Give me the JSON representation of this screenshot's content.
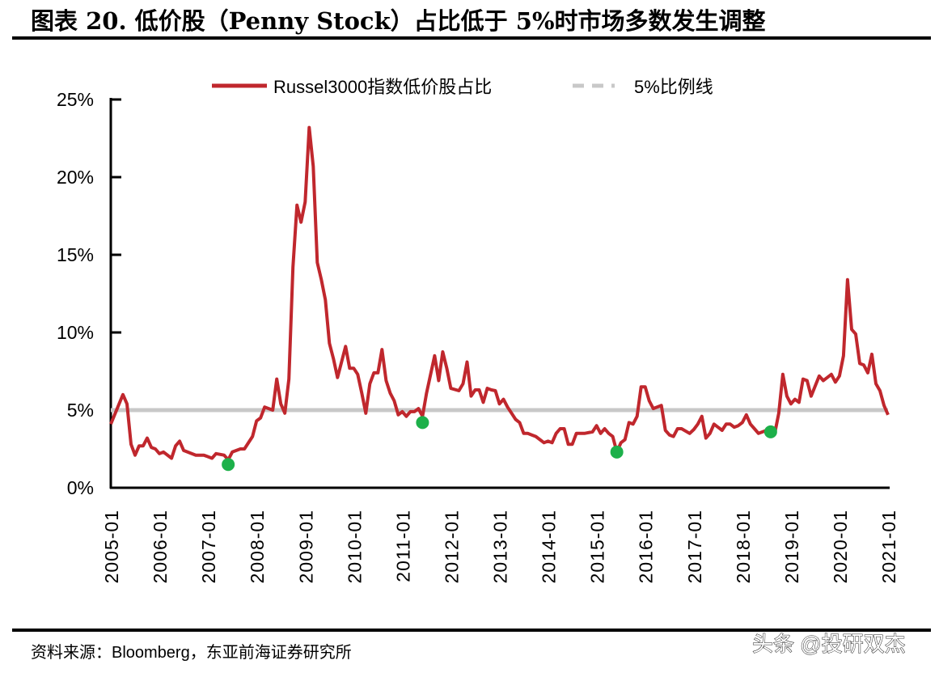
{
  "title": "图表 20. 低价股（Penny Stock）占比低于 5%时市场多数发生调整",
  "source": "资料来源：Bloomberg，东亚前海证券研究所",
  "watermark": "头条 @投研双杰",
  "colors": {
    "series": "#C0272D",
    "reference": "#C8C8C8",
    "marker": "#1DB04A"
  },
  "chart_data": {
    "type": "line",
    "title": "图表 20. 低价股（Penny Stock）占比低于 5%时市场多数发生调整",
    "xlabel": "",
    "ylabel": "",
    "x_unit": "months since 2005-01",
    "xlim": [
      0,
      192
    ],
    "ylim": [
      0,
      25
    ],
    "y_ticks": [
      0,
      5,
      10,
      15,
      20,
      25
    ],
    "y_tick_labels": [
      "0%",
      "5%",
      "10%",
      "15%",
      "20%",
      "25%"
    ],
    "x_tick_labels": [
      "2005-01",
      "2006-01",
      "2007-01",
      "2008-01",
      "2009-01",
      "2010-01",
      "2011-01",
      "2012-01",
      "2013-01",
      "2014-01",
      "2015-01",
      "2016-01",
      "2017-01",
      "2018-01",
      "2019-01",
      "2020-01",
      "2021-01"
    ],
    "grid": false,
    "legend_placement": "top-center",
    "legend": [
      "Russel3000指数低价股占比",
      "5%比例线"
    ],
    "series": [
      {
        "name": "Russel3000指数低价股占比",
        "x": [
          0,
          3,
          4,
          5,
          6,
          7,
          8,
          9,
          10,
          11,
          12,
          13,
          15,
          16,
          17,
          18,
          21,
          23,
          25,
          26,
          28,
          29,
          30,
          32,
          33,
          35,
          36,
          37,
          38,
          40,
          41,
          42,
          43,
          44,
          45,
          46,
          47,
          48,
          49,
          50,
          51,
          52,
          53,
          54,
          55,
          56,
          58,
          59,
          60,
          61,
          62,
          63,
          64,
          65,
          66,
          67,
          68,
          69,
          70,
          71,
          72,
          73,
          74,
          75,
          76,
          77,
          78,
          80,
          81,
          82,
          83,
          84,
          86,
          87,
          88,
          89,
          90,
          91,
          92,
          93,
          94,
          95,
          96,
          97,
          98,
          99,
          100,
          101,
          102,
          103,
          104,
          105,
          106,
          107,
          108,
          109,
          110,
          111,
          112,
          113,
          114,
          115,
          117,
          119,
          120,
          121,
          122,
          123,
          124,
          125,
          126,
          127,
          128,
          129,
          130,
          131,
          132,
          133,
          134,
          136,
          137,
          138,
          139,
          140,
          141,
          143,
          144,
          145,
          146,
          147,
          148,
          149,
          151,
          152,
          153,
          154,
          155,
          156,
          157,
          158,
          159,
          160,
          161,
          162,
          164,
          165,
          166,
          167,
          168,
          169,
          170,
          171,
          172,
          173,
          175,
          176,
          177,
          178,
          179,
          180,
          181,
          182,
          183,
          184,
          185,
          186,
          187,
          188,
          189,
          190,
          191,
          192
        ],
        "y": [
          4.1,
          6.0,
          5.4,
          2.8,
          2.1,
          2.7,
          2.7,
          3.2,
          2.6,
          2.5,
          2.2,
          2.3,
          1.9,
          2.7,
          3.0,
          2.4,
          2.1,
          2.1,
          1.9,
          2.2,
          2.1,
          1.8,
          2.3,
          2.5,
          2.5,
          3.3,
          4.3,
          4.5,
          5.2,
          5.0,
          7.0,
          5.4,
          4.8,
          7.0,
          14.2,
          18.2,
          17.1,
          18.4,
          23.2,
          20.7,
          14.5,
          13.4,
          12.1,
          9.3,
          8.3,
          7.1,
          9.1,
          7.7,
          7.7,
          7.3,
          6.1,
          4.8,
          6.7,
          7.4,
          7.4,
          8.9,
          6.9,
          6.1,
          5.6,
          4.7,
          4.9,
          4.6,
          4.9,
          4.9,
          5.1,
          4.6,
          6.1,
          8.5,
          6.9,
          8.75,
          7.7,
          6.4,
          6.25,
          6.7,
          8.1,
          5.9,
          6.3,
          6.3,
          5.5,
          6.4,
          6.3,
          6.25,
          5.4,
          5.7,
          5.2,
          4.8,
          4.4,
          4.2,
          3.5,
          3.5,
          3.4,
          3.3,
          3.1,
          2.9,
          3.0,
          2.9,
          3.5,
          3.8,
          3.8,
          2.8,
          2.8,
          3.5,
          3.5,
          3.6,
          4.0,
          3.5,
          3.8,
          3.5,
          3.3,
          2.3,
          2.9,
          3.1,
          4.2,
          4.1,
          4.6,
          6.5,
          6.5,
          5.6,
          5.1,
          5.3,
          3.7,
          3.4,
          3.3,
          3.8,
          3.8,
          3.5,
          3.75,
          4.1,
          4.6,
          3.2,
          3.5,
          4.1,
          3.7,
          4.1,
          4.1,
          3.9,
          4.0,
          4.2,
          4.7,
          4.1,
          3.8,
          3.5,
          3.6,
          3.7,
          3.5,
          4.8,
          7.3,
          5.9,
          5.4,
          5.7,
          5.5,
          7.0,
          6.9,
          5.9,
          7.2,
          6.9,
          7.1,
          7.3,
          6.8,
          7.2,
          8.5,
          13.4,
          10.2,
          9.9,
          8.0,
          7.9,
          7.4,
          8.6,
          6.7,
          6.25,
          5.3,
          4.7
        ]
      },
      {
        "name": "5%比例线",
        "x": [
          0,
          192
        ],
        "y": [
          5,
          5
        ]
      }
    ],
    "markers": [
      {
        "x": 29,
        "y": 1.5
      },
      {
        "x": 77,
        "y": 4.2
      },
      {
        "x": 125,
        "y": 2.3
      },
      {
        "x": 163,
        "y": 3.6
      }
    ]
  }
}
